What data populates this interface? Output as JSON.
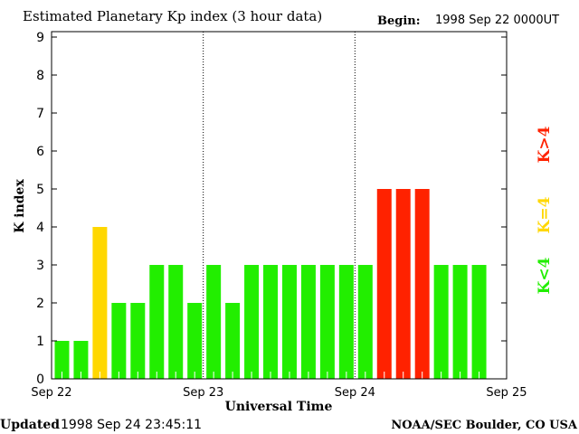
{
  "chart_data": {
    "type": "bar",
    "title": "Estimated Planetary Kp index (3 hour data)",
    "begin_label": "Begin:",
    "begin_value": "1998 Sep 22 0000UT",
    "xlabel": "Universal Time",
    "ylabel": "K index",
    "ylim": [
      0,
      9
    ],
    "yticks": [
      "0",
      "1",
      "2",
      "3",
      "4",
      "5",
      "6",
      "7",
      "8",
      "9"
    ],
    "xticks": [
      "Sep 22",
      "Sep 23",
      "Sep 24",
      "Sep 25"
    ],
    "bars_per_day": 8,
    "values": [
      1,
      1,
      4,
      2,
      2,
      3,
      3,
      2,
      3,
      2,
      3,
      3,
      3,
      3,
      3,
      3,
      3,
      5,
      5,
      5,
      3,
      3,
      3
    ],
    "legend": [
      {
        "label": "K<4",
        "color": "#22ee00"
      },
      {
        "label": "K=4",
        "color": "#ffd700"
      },
      {
        "label": "K>4",
        "color": "#ff2200"
      }
    ],
    "footer_left_label": "Updated",
    "footer_left_value": "1998 Sep 24 23:45:11",
    "footer_right": "NOAA/SEC Boulder, CO USA"
  }
}
